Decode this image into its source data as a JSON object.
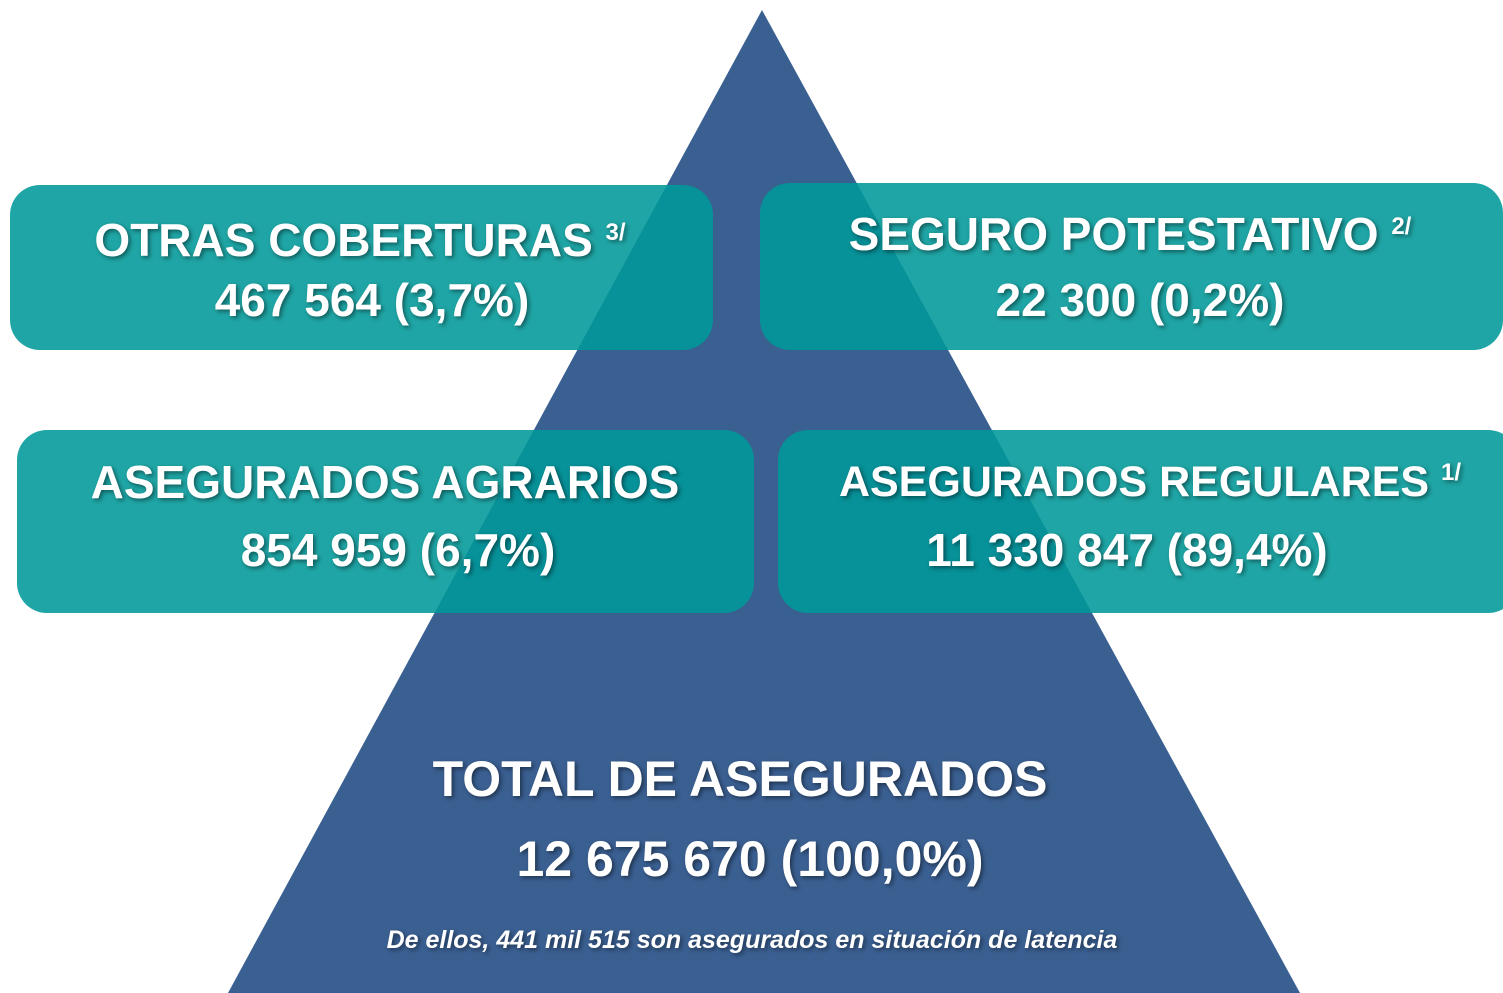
{
  "boxes": [
    {
      "label": "OTRAS COBERTURAS",
      "note": "3/",
      "value": "467 564 (3,7%)"
    },
    {
      "label": "SEGURO POTESTATIVO",
      "note": "2/",
      "value": "22 300 (0,2%)"
    },
    {
      "label": "ASEGURADOS AGRARIOS",
      "value": "854 959 (6,7%)"
    },
    {
      "label": "ASEGURADOS REGULARES",
      "note": "1/",
      "value": "11 330 847 (89,4%)"
    }
  ],
  "total": {
    "label": "TOTAL DE ASEGURADOS",
    "value": "12 675 670 (100,0%)"
  },
  "footnote": "De ellos, 441 mil 515 son asegurados en situación de latencia"
}
